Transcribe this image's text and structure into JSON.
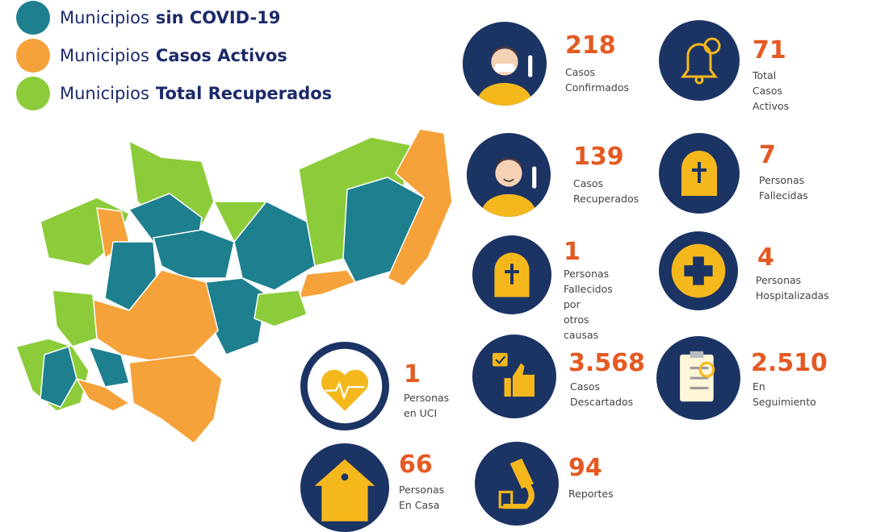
{
  "colors": {
    "sin_covid": "#1e7f8f",
    "activos": "#f5a23a",
    "recuperados": "#8ccc3a",
    "navy": "#1c3464",
    "yellow": "#f5b81c",
    "number": "#e35a23"
  },
  "legend": [
    {
      "prefix": "Municipios",
      "bold": "sin COVID-19",
      "color": "#1e7f8f"
    },
    {
      "prefix": "Municipios",
      "bold": "Casos Activos",
      "color": "#f5a23a"
    },
    {
      "prefix": "Municipios",
      "bold": "Total Recuperados",
      "color": "#8ccc3a"
    }
  ],
  "stats": [
    {
      "value": "218",
      "label": "Casos\nConfirmados",
      "icon": "masked-person-icon"
    },
    {
      "value": "71",
      "label": "Total Casos\nActivos",
      "icon": "bell-icon"
    },
    {
      "value": "139",
      "label": "Casos\nRecuperados",
      "icon": "smiling-person-icon"
    },
    {
      "value": "7",
      "label": "Personas\nFallecidas",
      "icon": "tombstone-icon"
    },
    {
      "value": "1",
      "label": "Personas\nFallecidos por\notros causas",
      "icon": "tombstone-icon"
    },
    {
      "value": "4",
      "label": "Personas\nHospitalizadas",
      "icon": "medical-cross-icon"
    },
    {
      "value": "1",
      "label": "Personas\nen UCI",
      "icon": "heartbeat-icon"
    },
    {
      "value": "3.568",
      "label": "Casos\nDescartados",
      "icon": "thumbs-up-icon"
    },
    {
      "value": "2.510",
      "label": "En Seguimiento",
      "icon": "clipboard-icon"
    },
    {
      "value": "66",
      "label": "Personas\nEn Casa",
      "icon": "house-icon"
    },
    {
      "value": "94",
      "label": "Reportes",
      "icon": "microscope-icon"
    }
  ]
}
